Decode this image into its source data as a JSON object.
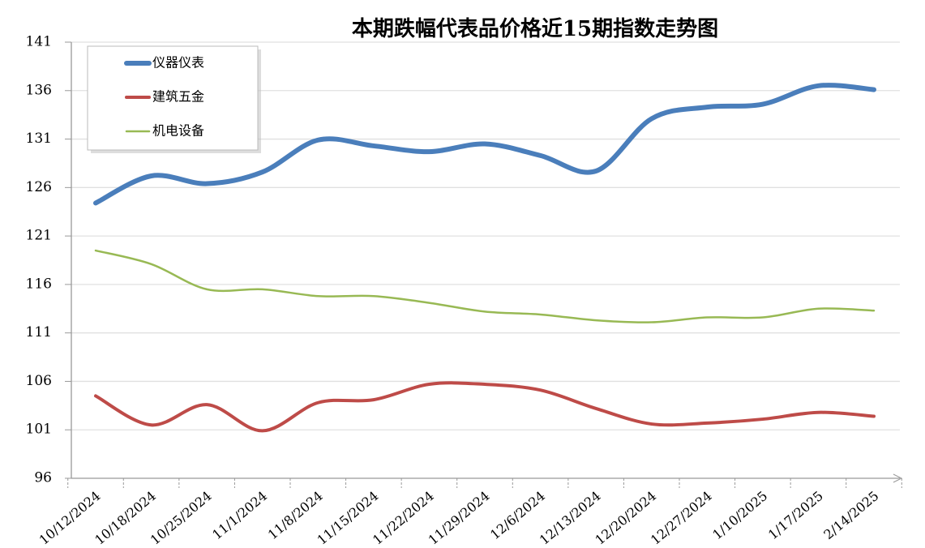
{
  "chart_data": {
    "type": "line",
    "title": "本期跌幅代表品价格近15期指数走势图",
    "categories": [
      "10/12/2024",
      "10/18/2024",
      "10/25/2024",
      "11/1/2024",
      "11/8/2024",
      "11/15/2024",
      "11/22/2024",
      "11/29/2024",
      "12/6/2024",
      "12/13/2024",
      "12/20/2024",
      "12/27/2024",
      "1/10/2025",
      "1/17/2025",
      "2/14/2025"
    ],
    "series": [
      {
        "name": "仪器仪表",
        "color": "#4a7ebb",
        "values": [
          124.4,
          127.2,
          126.4,
          127.6,
          130.9,
          130.3,
          129.7,
          130.5,
          129.3,
          127.7,
          133.1,
          134.3,
          134.6,
          136.5,
          136.1
        ]
      },
      {
        "name": "建筑五金",
        "color": "#be4b48",
        "values": [
          104.5,
          101.5,
          103.6,
          100.9,
          103.8,
          104.1,
          105.7,
          105.7,
          105.1,
          103.2,
          101.6,
          101.7,
          102.1,
          102.8,
          102.4
        ]
      },
      {
        "name": "机电设备",
        "color": "#98b954",
        "values": [
          119.5,
          118.1,
          115.5,
          115.5,
          114.8,
          114.8,
          114.1,
          113.2,
          112.9,
          112.3,
          112.1,
          112.6,
          112.6,
          113.5,
          113.3
        ]
      }
    ],
    "ylim": [
      96,
      141
    ],
    "yticks": [
      96,
      101,
      106,
      111,
      116,
      121,
      126,
      131,
      136,
      141
    ],
    "grid": true,
    "legend": "top-left"
  }
}
